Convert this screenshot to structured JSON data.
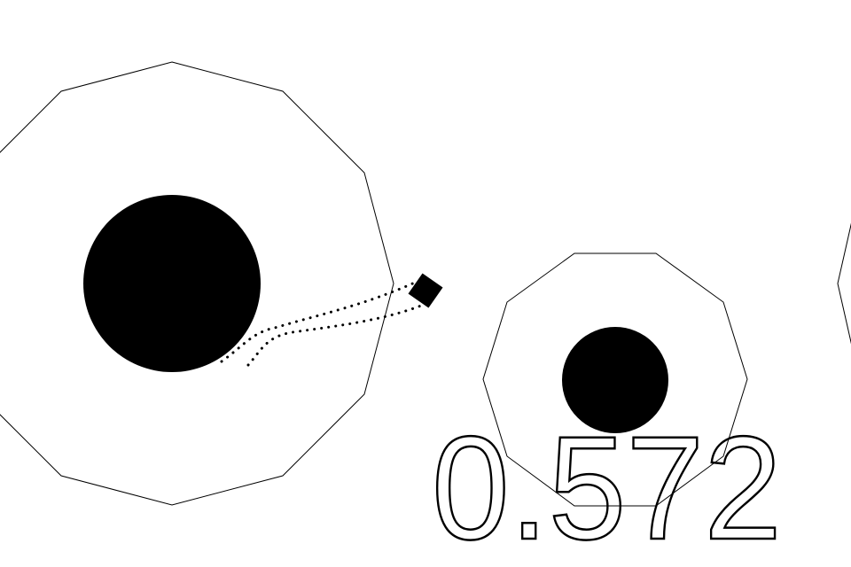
{
  "hud": {
    "value": "0.572"
  }
}
